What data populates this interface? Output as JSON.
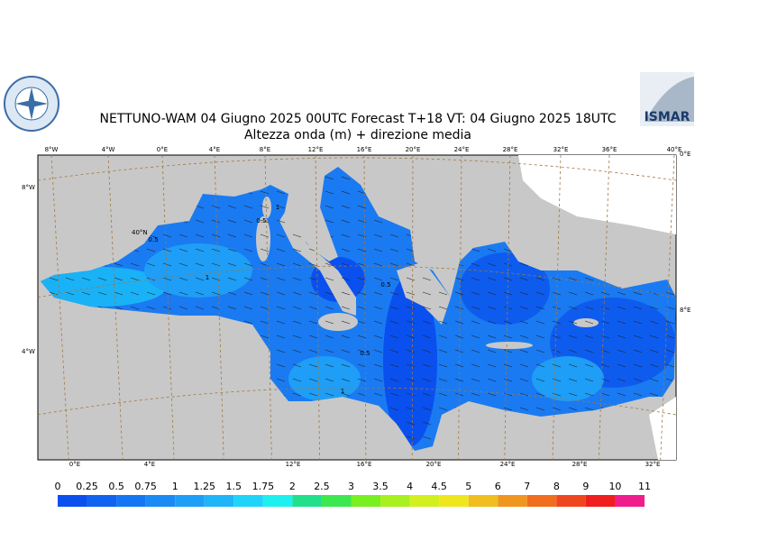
{
  "header": {
    "title": "NETTUNO-WAM  04   Giugno  2025 00UTC Forecast T+18 VT: 04   Giugno  2025 18UTC",
    "subtitle": "Altezza onda (m) + direzione media",
    "logo_text": "ISMAR"
  },
  "map": {
    "top_lon_labels": [
      "8°W",
      "4°W",
      "0°E",
      "4°E",
      "8°E",
      "12°E",
      "16°E",
      "20°E",
      "24°E",
      "28°E",
      "32°E",
      "36°E",
      "40°E"
    ],
    "bottom_lon_labels": [
      "0°E",
      "4°E",
      "12°E",
      "16°E",
      "20°E",
      "24°E",
      "28°E",
      "32°E"
    ],
    "left_lat_labels": [
      "8°W",
      "40°N",
      "4°W"
    ],
    "right_labels": [
      "0°E",
      "8°E"
    ],
    "contour_labels": [
      "1",
      "0.5",
      "1",
      "0.5",
      "0.5",
      "1",
      "0.5"
    ]
  },
  "legend": {
    "ticks": [
      0,
      0.25,
      0.5,
      0.75,
      1,
      1.25,
      1.5,
      1.75,
      2,
      2.5,
      3,
      3.5,
      4,
      4.5,
      5,
      6,
      7,
      8,
      9,
      10,
      11
    ],
    "colors": [
      "#0a50ee",
      "#1062f0",
      "#1476f2",
      "#1a8af4",
      "#1e9ef6",
      "#1eb6f8",
      "#1ed4fa",
      "#1ef0f0",
      "#20e08c",
      "#3ce850",
      "#78f020",
      "#a8f020",
      "#d2f020",
      "#f0e61e",
      "#f0be1e",
      "#f0961e",
      "#f06e1e",
      "#f04620",
      "#f01e1e",
      "#f01e8c"
    ]
  }
}
